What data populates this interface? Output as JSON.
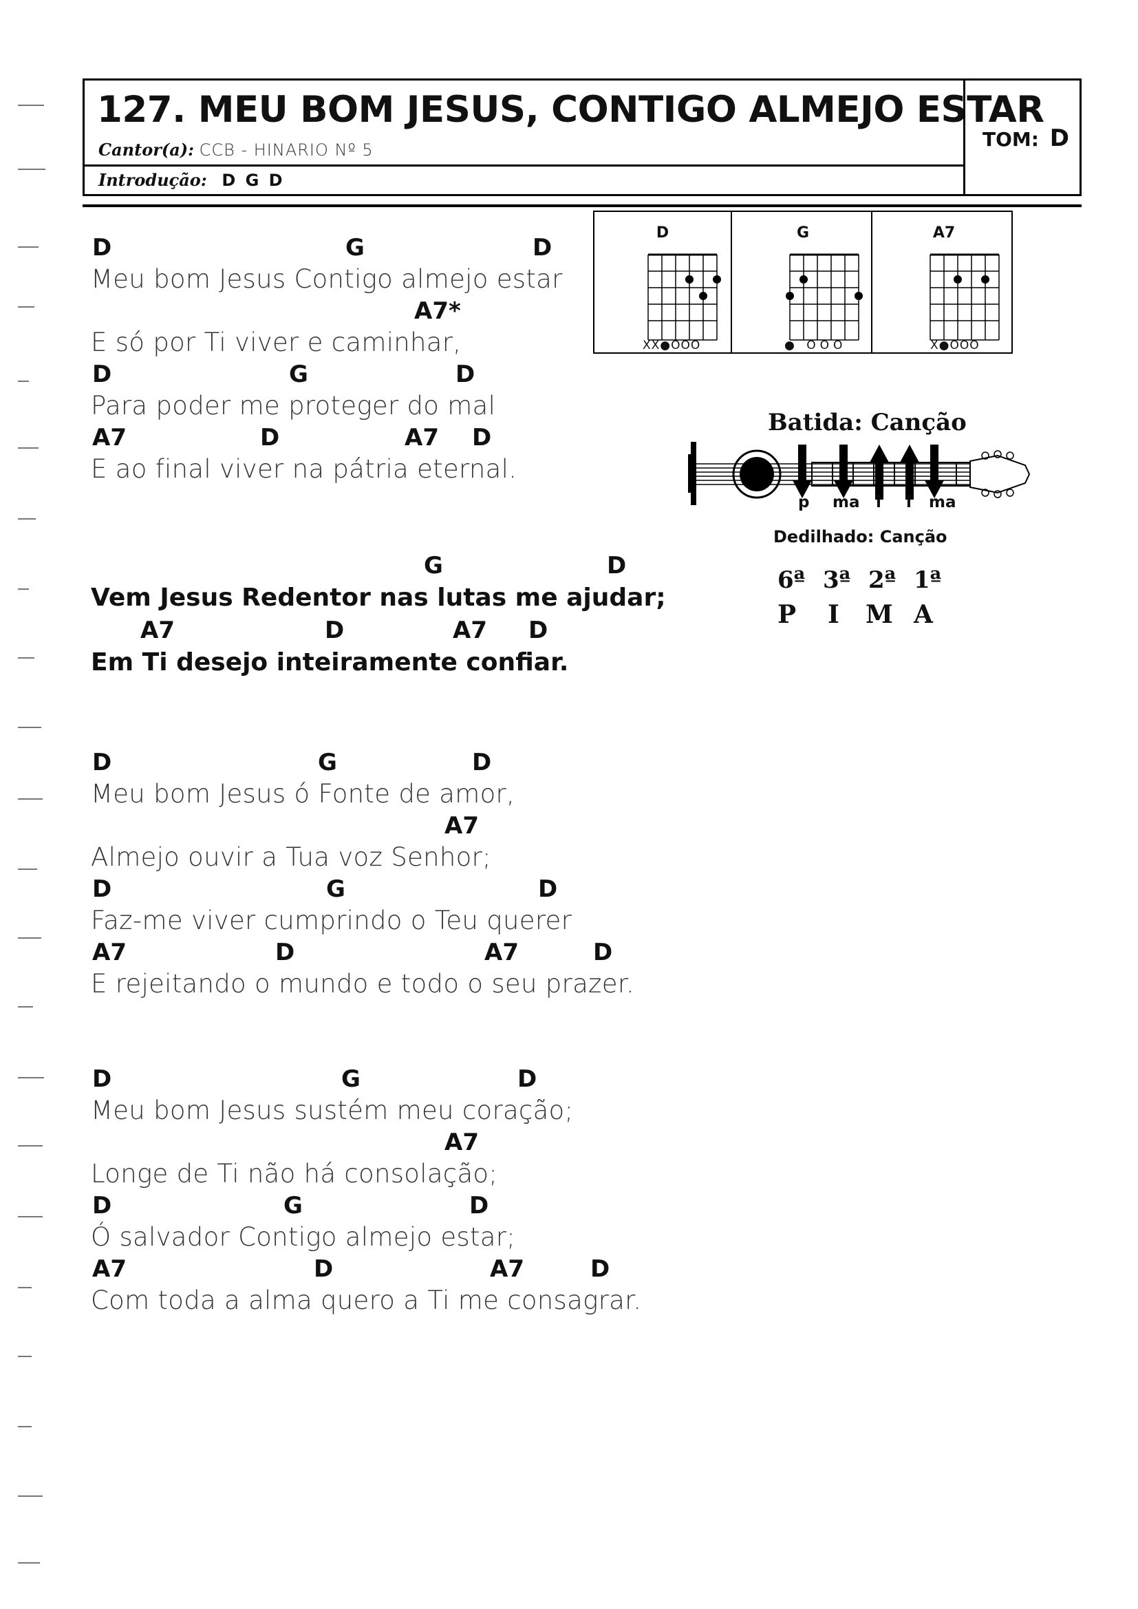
{
  "header": {
    "title": "127. MEU BOM JESUS, CONTIGO ALMEJO ESTAR",
    "cantor_label": "Cantor(a):",
    "cantor_value": "CCB - HINARIO Nº 5",
    "intro_label": "Introdução:",
    "intro_value": "D G D",
    "tom_label": "TOM:",
    "tom_value": "D"
  },
  "song": {
    "stanza1": [
      {
        "chords": [
          "D",
          "G",
          "D"
        ],
        "text": "Meu bom Jesus Contigo almejo estar"
      },
      {
        "chords": [
          "A7*"
        ],
        "text": "E só por Ti viver e caminhar,"
      },
      {
        "chords": [
          "D",
          "G",
          "D"
        ],
        "text": "Para poder me proteger do mal"
      },
      {
        "chords": [
          "A7",
          "D",
          "A7",
          "D"
        ],
        "text": "E ao final viver na pátria eternal."
      }
    ],
    "chorus": [
      {
        "chords": [
          "G",
          "D"
        ],
        "text": "Vem Jesus Redentor nas lutas me ajudar;"
      },
      {
        "chords": [
          "A7",
          "D",
          "A7",
          "D"
        ],
        "text": "Em Ti desejo inteiramente confiar."
      }
    ],
    "stanza2": [
      {
        "chords": [
          "D",
          "G",
          "D"
        ],
        "text": "Meu bom Jesus ó Fonte de amor,"
      },
      {
        "chords": [
          "A7"
        ],
        "text": "Almejo ouvir a Tua voz Senhor;"
      },
      {
        "chords": [
          "D",
          "G",
          "D"
        ],
        "text": "Faz-me viver cumprindo o Teu querer"
      },
      {
        "chords": [
          "A7",
          "D",
          "A7",
          "D"
        ],
        "text": "E rejeitando o mundo e todo o seu prazer."
      }
    ],
    "stanza3": [
      {
        "chords": [
          "D",
          "G",
          "D"
        ],
        "text": "Meu bom Jesus sustém meu coração;"
      },
      {
        "chords": [
          "A7"
        ],
        "text": "Longe de Ti não há consolação;"
      },
      {
        "chords": [
          "D",
          "G",
          "D"
        ],
        "text": "Ó salvador Contigo almejo estar;"
      },
      {
        "chords": [
          "A7",
          "D",
          "A7",
          "D"
        ],
        "text": "Com toda a alma quero a Ti me consagrar."
      }
    ]
  },
  "chord_diagrams": [
    {
      "name": "D",
      "strings_bottom": "XX●OOO"
    },
    {
      "name": "G",
      "strings_bottom": "● OOO"
    },
    {
      "name": "A7",
      "strings_bottom": "X●OOO"
    }
  ],
  "batida": {
    "title": "Batida: Canção",
    "strokes": [
      {
        "dir": "down",
        "label": "p"
      },
      {
        "dir": "down",
        "label": "ma"
      },
      {
        "dir": "up",
        "label": "i"
      },
      {
        "dir": "up",
        "label": "i"
      },
      {
        "dir": "down",
        "label": "ma"
      }
    ]
  },
  "dedilhado": {
    "title": "Dedilhado: Canção",
    "strings": [
      "6ª",
      "3ª",
      "2ª",
      "1ª"
    ],
    "fingers": [
      "P",
      "I",
      "M",
      "A"
    ]
  }
}
